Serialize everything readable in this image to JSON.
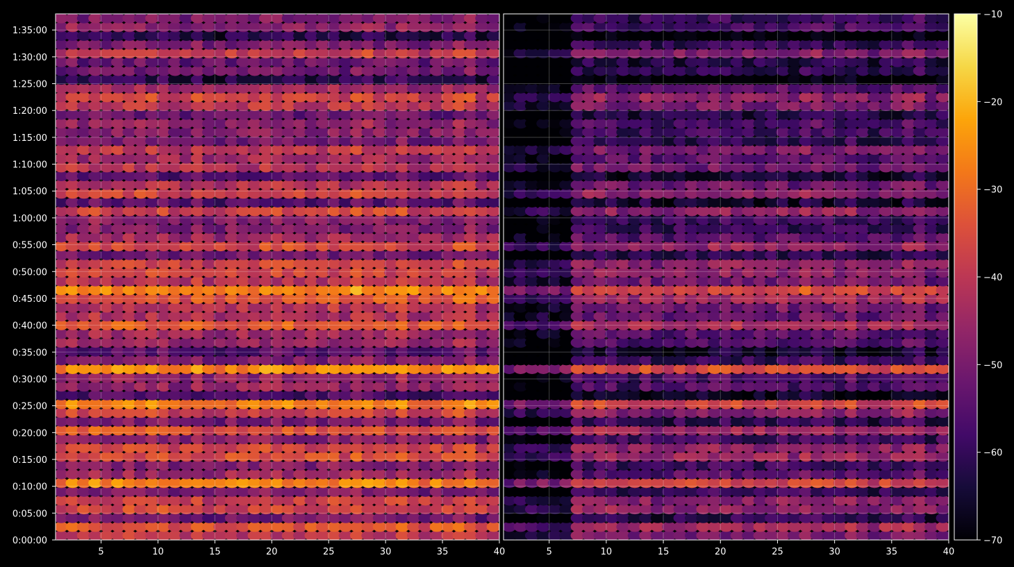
{
  "chart_data": {
    "type": "heatmap",
    "colormap": "inferno",
    "background_color": "#000000",
    "grid": true,
    "colorbar": {
      "min": -70,
      "max": -10,
      "ticks": [
        -10,
        -20,
        -30,
        -40,
        -50,
        -60,
        -70
      ],
      "tick_labels": [
        "−10",
        "−20",
        "−30",
        "−40",
        "−50",
        "−60",
        "−70"
      ],
      "placement": "right"
    },
    "y": {
      "min_seconds": 0,
      "max_seconds": 5880,
      "ticks_seconds": [
        0,
        300,
        600,
        900,
        1200,
        1500,
        1800,
        2100,
        2400,
        2700,
        3000,
        3300,
        3600,
        3900,
        4200,
        4500,
        4800,
        5100,
        5400,
        5700
      ],
      "tick_labels": [
        "0:00:00",
        "0:05:00",
        "0:10:00",
        "0:15:00",
        "0:20:00",
        "0:25:00",
        "0:30:00",
        "0:35:00",
        "0:40:00",
        "0:45:00",
        "0:50:00",
        "0:55:00",
        "1:00:00",
        "1:05:00",
        "1:10:00",
        "1:15:00",
        "1:20:00",
        "1:25:00",
        "1:30:00",
        "1:35:00"
      ]
    },
    "panels": [
      {
        "x_range": [
          1,
          40
        ],
        "ticks": [
          5,
          10,
          15,
          20,
          25,
          30,
          35,
          40
        ],
        "tick_labels": [
          "5",
          "10",
          "15",
          "20",
          "25",
          "30",
          "35",
          "40"
        ],
        "columns": 39,
        "rows": 60,
        "level_offset": 0
      },
      {
        "x_range": [
          1,
          40
        ],
        "ticks": [
          5,
          10,
          15,
          20,
          25,
          30,
          35,
          40
        ],
        "tick_labels": [
          "5",
          "10",
          "15",
          "20",
          "25",
          "30",
          "35",
          "40"
        ],
        "columns": 39,
        "rows": 60,
        "level_offset": -10,
        "low_columns": [
          1,
          2,
          3,
          4,
          5,
          6
        ]
      }
    ]
  }
}
